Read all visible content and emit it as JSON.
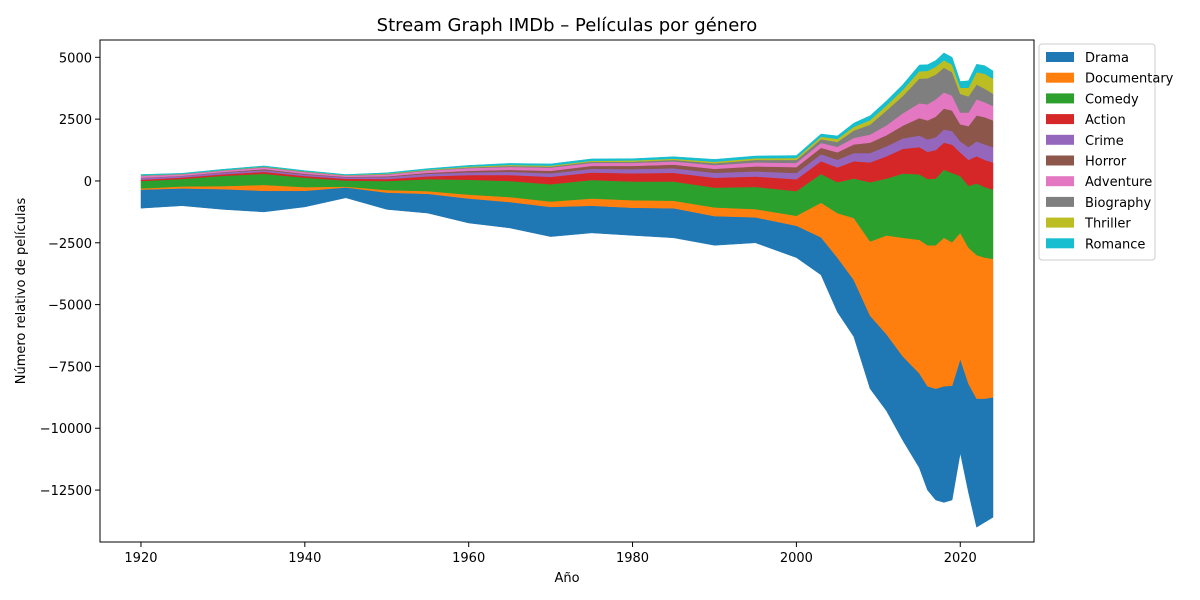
{
  "chart_data": {
    "type": "area",
    "subtype": "streamgraph",
    "title": "Stream Graph IMDb – Películas por género",
    "xlabel": "Año",
    "ylabel": "Número relativo de películas",
    "xlim": [
      1915,
      2029
    ],
    "ylim": [
      -14600,
      5700
    ],
    "x_ticks": [
      1920,
      1940,
      1960,
      1980,
      2000,
      2020
    ],
    "y_ticks": [
      5000,
      2500,
      0,
      -2500,
      -5000,
      -7500,
      -10000,
      -12500
    ],
    "y_tick_labels": [
      "5000",
      "2500",
      "0",
      "−2500",
      "−5000",
      "−7500",
      "−10000",
      "−12500"
    ],
    "legend_position": "upper right, outside plot",
    "grid": false,
    "x": [
      1920,
      1925,
      1930,
      1935,
      1940,
      1945,
      1950,
      1955,
      1960,
      1965,
      1970,
      1975,
      1980,
      1985,
      1990,
      1995,
      2000,
      2003,
      2005,
      2007,
      2009,
      2011,
      2013,
      2015,
      2016,
      2017,
      2018,
      2019,
      2020,
      2021,
      2022,
      2023,
      2024
    ],
    "baseline": [
      -1100,
      -1000,
      -1150,
      -1250,
      -1050,
      -680,
      -1150,
      -1300,
      -1700,
      -1900,
      -2250,
      -2100,
      -2200,
      -2300,
      -2600,
      -2500,
      -3100,
      -3800,
      -5300,
      -6300,
      -8400,
      -9300,
      -10500,
      -11600,
      -12500,
      -12900,
      -13000,
      -12900,
      -11000,
      -12600,
      -14000,
      -13800,
      -13600
    ],
    "series": [
      {
        "name": "Drama",
        "color": "#1f77b4",
        "values": [
          750,
          700,
          820,
          850,
          650,
          420,
          680,
          780,
          990,
          1050,
          1200,
          1100,
          1120,
          1200,
          1180,
          1030,
          1290,
          1520,
          2200,
          2300,
          2950,
          3100,
          3400,
          3820,
          4200,
          4500,
          4700,
          4620,
          3800,
          4400,
          5200,
          5000,
          4850
        ]
      },
      {
        "name": "Documentary",
        "color": "#ff7f0e",
        "values": [
          50,
          80,
          120,
          240,
          150,
          30,
          100,
          110,
          160,
          200,
          220,
          290,
          300,
          300,
          350,
          330,
          400,
          1400,
          1800,
          2500,
          3000,
          4000,
          4800,
          5400,
          5700,
          5800,
          6000,
          5800,
          5100,
          5500,
          5800,
          5700,
          5600
        ]
      },
      {
        "name": "Comedy",
        "color": "#2ca02c",
        "values": [
          300,
          300,
          420,
          450,
          380,
          250,
          370,
          480,
          600,
          650,
          700,
          750,
          760,
          780,
          800,
          900,
          1000,
          1160,
          1250,
          1600,
          2400,
          2300,
          2600,
          2650,
          2680,
          2700,
          2750,
          2800,
          2300,
          2500,
          2900,
          2850,
          2800
        ]
      },
      {
        "name": "Action",
        "color": "#d62728",
        "values": [
          50,
          60,
          60,
          80,
          70,
          70,
          80,
          120,
          190,
          240,
          300,
          300,
          330,
          350,
          400,
          420,
          480,
          520,
          600,
          700,
          800,
          900,
          1000,
          1100,
          1100,
          1150,
          1100,
          1150,
          950,
          1050,
          1100,
          1100,
          1100
        ]
      },
      {
        "name": "Crime",
        "color": "#9467bd",
        "values": [
          70,
          60,
          70,
          70,
          60,
          60,
          80,
          100,
          110,
          130,
          140,
          150,
          170,
          180,
          200,
          210,
          250,
          280,
          310,
          330,
          380,
          400,
          420,
          470,
          500,
          520,
          530,
          550,
          450,
          520,
          600,
          630,
          620
        ]
      },
      {
        "name": "Horror",
        "color": "#8c564b",
        "values": [
          10,
          10,
          20,
          40,
          30,
          20,
          30,
          40,
          60,
          80,
          100,
          120,
          130,
          150,
          160,
          200,
          240,
          260,
          300,
          350,
          420,
          450,
          520,
          700,
          770,
          830,
          850,
          830,
          690,
          850,
          1050,
          1100,
          1080
        ]
      },
      {
        "name": "Adventure",
        "color": "#e377c2",
        "values": [
          80,
          60,
          60,
          70,
          70,
          50,
          70,
          90,
          110,
          120,
          130,
          120,
          120,
          130,
          150,
          160,
          170,
          200,
          220,
          260,
          330,
          400,
          500,
          600,
          650,
          700,
          650,
          600,
          480,
          550,
          650,
          600,
          580
        ]
      },
      {
        "name": "Biography",
        "color": "#7f7f7f",
        "values": [
          10,
          10,
          10,
          20,
          20,
          10,
          20,
          20,
          30,
          40,
          40,
          50,
          50,
          60,
          80,
          100,
          120,
          150,
          200,
          300,
          400,
          600,
          700,
          1000,
          1050,
          1000,
          1000,
          950,
          750,
          650,
          600,
          550,
          500
        ]
      },
      {
        "name": "Thriller",
        "color": "#bcbd22",
        "values": [
          10,
          10,
          10,
          10,
          10,
          10,
          20,
          20,
          30,
          40,
          40,
          40,
          50,
          50,
          60,
          70,
          80,
          100,
          120,
          150,
          180,
          200,
          250,
          300,
          300,
          320,
          300,
          300,
          250,
          350,
          500,
          600,
          600
        ]
      },
      {
        "name": "Romance",
        "color": "#17becf",
        "values": [
          30,
          20,
          30,
          30,
          30,
          20,
          30,
          40,
          50,
          60,
          70,
          70,
          70,
          80,
          90,
          90,
          100,
          110,
          120,
          150,
          180,
          190,
          210,
          250,
          250,
          250,
          300,
          300,
          250,
          280,
          320,
          330,
          320
        ]
      }
    ]
  }
}
